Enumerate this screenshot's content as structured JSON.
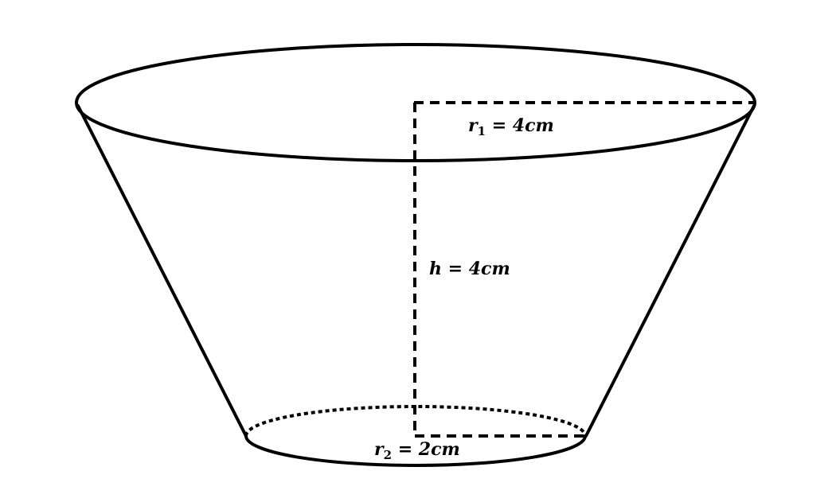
{
  "figure": {
    "stroke_color": "#000000",
    "background_color": "#ffffff"
  },
  "labels": {
    "r1": {
      "var": "r",
      "sub": "1",
      "rest": " = 4cm"
    },
    "h": {
      "text": "h = 4cm"
    },
    "r2": {
      "var": "r",
      "sub": "2",
      "rest": " = 2cm"
    }
  }
}
